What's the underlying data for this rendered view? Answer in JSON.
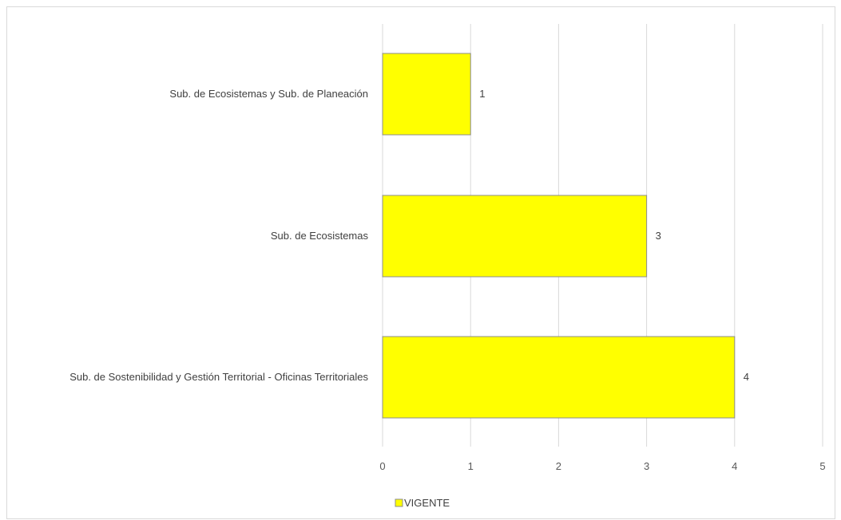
{
  "chart_data": {
    "type": "bar",
    "orientation": "horizontal",
    "categories": [
      "Sub. de Ecosistemas y Sub. de Planeación",
      "Sub. de Ecosistemas",
      "Sub. de Sostenibilidad y Gestión Territorial - Oficinas Territoriales"
    ],
    "series": [
      {
        "name": "VIGENTE",
        "values": [
          1,
          3,
          4
        ],
        "color": "#ffff00"
      }
    ],
    "xlim": [
      0,
      5
    ],
    "xticks": [
      "0",
      "1",
      "2",
      "3",
      "4",
      "5"
    ],
    "grid": true,
    "data_labels": [
      "1",
      "3",
      "4"
    ],
    "legend": "bottom-center"
  }
}
